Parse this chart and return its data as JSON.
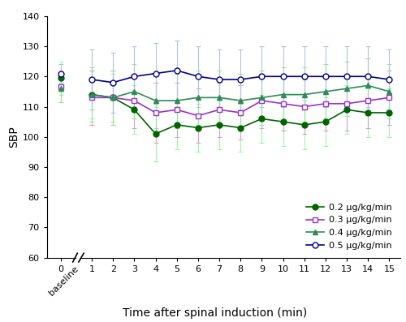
{
  "xlabel": "Time after spinal induction (min)",
  "ylabel": "SBP",
  "ylim": [
    60,
    140
  ],
  "yticks": [
    60,
    70,
    80,
    90,
    100,
    110,
    120,
    130,
    140
  ],
  "time_x": [
    1,
    2,
    3,
    4,
    5,
    6,
    7,
    8,
    9,
    10,
    11,
    12,
    13,
    14,
    15
  ],
  "series": {
    "0.2": {
      "color": "#006400",
      "marker": "o",
      "filled": true,
      "label": "0.2 μg/kg/min",
      "baseline_mean": 119.5,
      "baseline_err": 5.5,
      "means": [
        114,
        113,
        109,
        101,
        104,
        103,
        104,
        103,
        106,
        105,
        104,
        105,
        109,
        108,
        108
      ],
      "errors": [
        8,
        8,
        8,
        9,
        8,
        8,
        8,
        8,
        8,
        8,
        8,
        8,
        8,
        8,
        8
      ]
    },
    "0.3": {
      "color": "#9932CC",
      "marker": "s",
      "filled": false,
      "label": "0.3 μg/kg/min",
      "baseline_mean": 116.5,
      "baseline_err": 5.0,
      "means": [
        113,
        113,
        112,
        108,
        109,
        107,
        109,
        108,
        112,
        111,
        110,
        111,
        111,
        112,
        113
      ],
      "errors": [
        9,
        9,
        9,
        10,
        9,
        9,
        9,
        9,
        9,
        9,
        9,
        9,
        9,
        9,
        9
      ]
    },
    "0.4": {
      "color": "#2E8B57",
      "marker": "^",
      "filled": true,
      "label": "0.4 μg/kg/min",
      "baseline_mean": 116.0,
      "baseline_err": 4.5,
      "means": [
        114,
        113,
        115,
        112,
        112,
        113,
        113,
        112,
        113,
        114,
        114,
        115,
        116,
        117,
        115
      ],
      "errors": [
        9,
        9,
        9,
        9,
        9,
        9,
        9,
        9,
        9,
        9,
        9,
        9,
        9,
        9,
        9
      ]
    },
    "0.5": {
      "color": "#00008B",
      "marker": "o",
      "filled": false,
      "label": "0.5 μg/kg/min",
      "baseline_mean": 121.0,
      "baseline_err": 3.0,
      "means": [
        119,
        118,
        120,
        121,
        122,
        120,
        119,
        119,
        120,
        120,
        120,
        120,
        120,
        120,
        119
      ],
      "errors": [
        10,
        10,
        10,
        10,
        10,
        10,
        10,
        10,
        10,
        10,
        10,
        10,
        10,
        10,
        10
      ]
    }
  },
  "err_colors": {
    "0.2": "#98FB98",
    "0.3": "#DA9EDA",
    "0.4": "#90EE90",
    "0.5": "#B0C4DE"
  },
  "error_capsize": 2,
  "linewidth": 1.2,
  "markersize": 5
}
